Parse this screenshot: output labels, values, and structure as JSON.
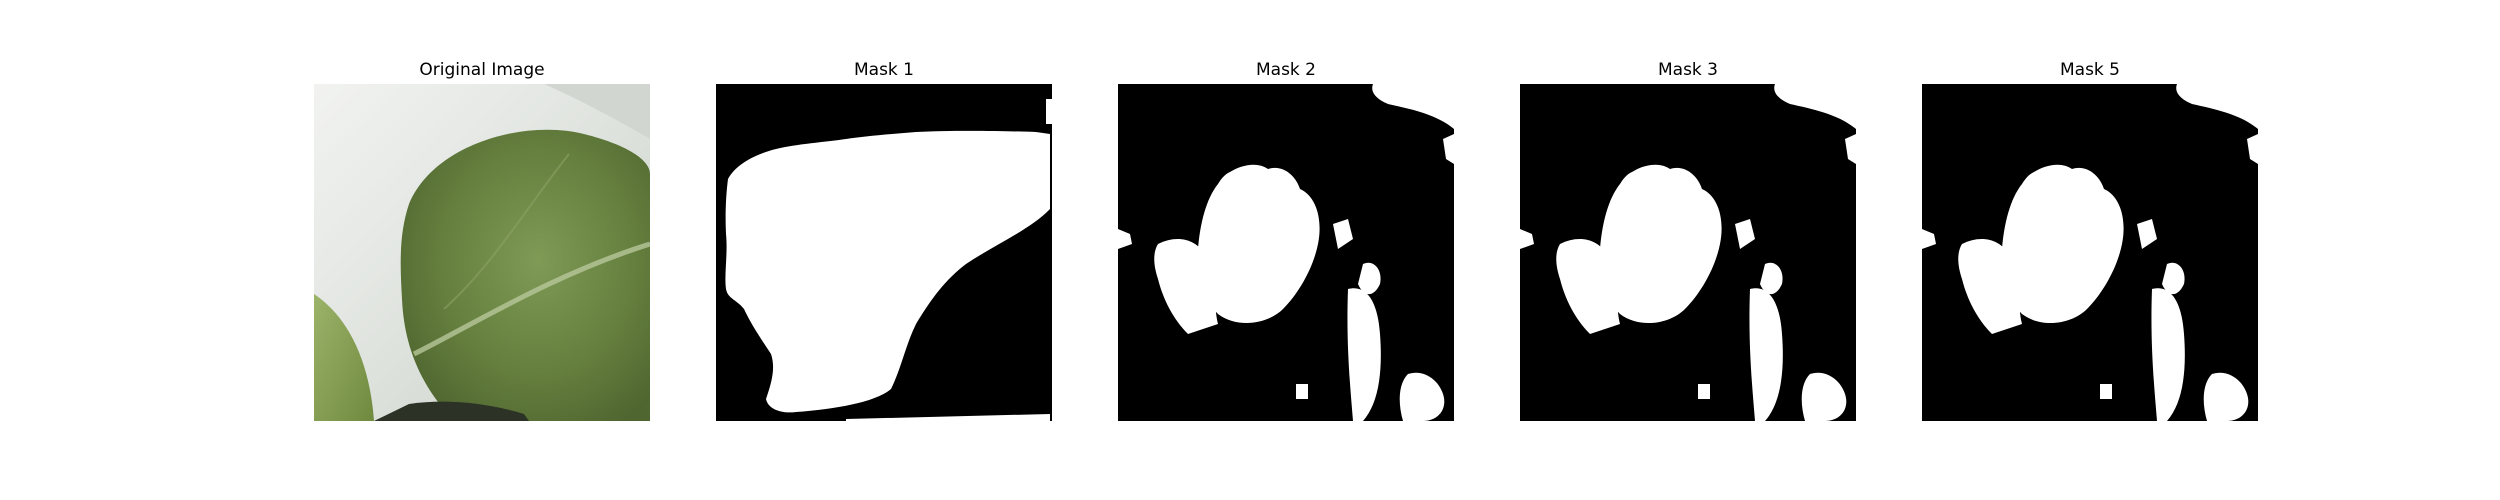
{
  "figure": {
    "panels": [
      {
        "title": "Original Image",
        "kind": "photo",
        "subject": "green leaf on white background"
      },
      {
        "title": "Mask 1",
        "kind": "binary-mask"
      },
      {
        "title": "Mask 2",
        "kind": "binary-mask"
      },
      {
        "title": "Mask 3",
        "kind": "binary-mask"
      },
      {
        "title": "Mask 5",
        "kind": "binary-mask"
      }
    ]
  },
  "colors": {
    "mask_background": "#000000",
    "mask_foreground": "#ffffff",
    "leaf_dark": "#5f7a3c",
    "leaf_light": "#8aa266",
    "paper": "#e6e9e4"
  }
}
